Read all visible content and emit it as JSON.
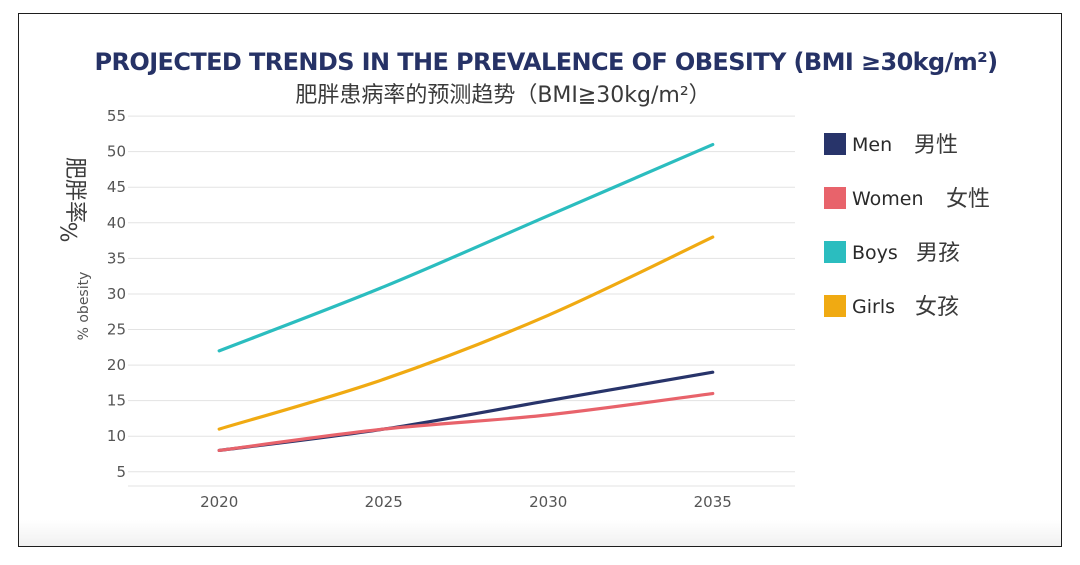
{
  "chart_data": {
    "type": "line",
    "title": "PROJECTED TRENDS IN THE PREVALENCE OF OBESITY (BMI ≥30kg/m²)",
    "subtitle": "肥胖患病率的预测趋势（BMI≧30kg/m²）",
    "ylabel_cn": "肥胖率",
    "ylabel_pct": "%",
    "ylabel": "% obesity",
    "xlabel": "",
    "x": [
      2020,
      2025,
      2030,
      2035
    ],
    "x_tick_labels": [
      "2020",
      "2025",
      "2030",
      "2035"
    ],
    "y_ticks": [
      5,
      10,
      15,
      20,
      25,
      30,
      35,
      40,
      45,
      50,
      55
    ],
    "ylim": [
      3,
      56
    ],
    "xlim": [
      2016.5,
      2037.5
    ],
    "grid": true,
    "legend_position": "right",
    "series": [
      {
        "name": "Men",
        "name_cn": "男性",
        "color": "#28346a",
        "values": [
          8,
          11,
          15,
          19
        ]
      },
      {
        "name": "Women",
        "name_cn": "女性",
        "color": "#e8636b",
        "values": [
          8,
          11,
          13,
          16
        ]
      },
      {
        "name": "Boys",
        "name_cn": "男孩",
        "color": "#2bbdbf",
        "values": [
          22,
          31,
          41,
          51
        ]
      },
      {
        "name": "Girls",
        "name_cn": "女孩",
        "color": "#f0aa12",
        "values": [
          11,
          18,
          27,
          38
        ]
      }
    ]
  }
}
